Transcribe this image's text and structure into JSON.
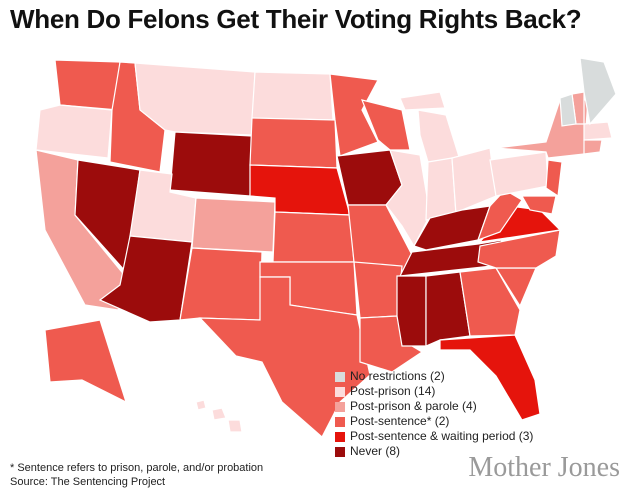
{
  "title": "When Do Felons Get Their Voting Rights Back?",
  "legend": [
    {
      "label": "No restrictions (2)",
      "color": "#d8dcdc"
    },
    {
      "label": "Post-prison (14)",
      "color": "#fcdcdc"
    },
    {
      "label": "Post-prison & parole (4)",
      "color": "#f4a19b"
    },
    {
      "label": "Post-sentence* (2)",
      "color": "#ef5a4f"
    },
    {
      "label": "Post-sentence & waiting period (3)",
      "color": "#e5140c"
    },
    {
      "label": "Never (8)",
      "color": "#9c0c0c"
    }
  ],
  "footnote": "* Sentence refers to prison, parole, and/or probation",
  "source": "Source: The Sentencing Project",
  "logo": "Mother Jones"
}
